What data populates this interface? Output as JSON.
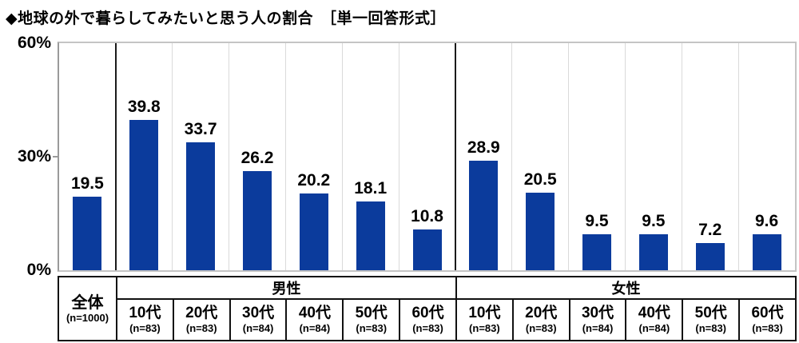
{
  "title": "◆地球の外で暮らしてみたいと思う人の割合　［単一回答形式］",
  "chart_data": {
    "type": "bar",
    "title": "◆地球の外で暮らしてみたいと思う人の割合　［単一回答形式］",
    "ylim": [
      0,
      60
    ],
    "yticks": [
      {
        "value": 0,
        "label": "0%"
      },
      {
        "value": 30,
        "label": "30%"
      },
      {
        "value": 60,
        "label": "60%"
      }
    ],
    "bar_color": "#0b3b9c",
    "grid": "vertical-column-dividers",
    "legend": "none",
    "columns": [
      {
        "group": "全体",
        "age": "全体",
        "n": "(n=1000)",
        "value": 19.5
      },
      {
        "group": "男性",
        "age": "10代",
        "n": "(n=83)",
        "value": 39.8
      },
      {
        "group": "男性",
        "age": "20代",
        "n": "(n=83)",
        "value": 33.7
      },
      {
        "group": "男性",
        "age": "30代",
        "n": "(n=84)",
        "value": 26.2
      },
      {
        "group": "男性",
        "age": "40代",
        "n": "(n=84)",
        "value": 20.2
      },
      {
        "group": "男性",
        "age": "50代",
        "n": "(n=83)",
        "value": 18.1
      },
      {
        "group": "男性",
        "age": "60代",
        "n": "(n=83)",
        "value": 10.8
      },
      {
        "group": "女性",
        "age": "10代",
        "n": "(n=83)",
        "value": 28.9
      },
      {
        "group": "女性",
        "age": "20代",
        "n": "(n=83)",
        "value": 20.5
      },
      {
        "group": "女性",
        "age": "30代",
        "n": "(n=84)",
        "value": 9.5
      },
      {
        "group": "女性",
        "age": "40代",
        "n": "(n=84)",
        "value": 9.5
      },
      {
        "group": "女性",
        "age": "50代",
        "n": "(n=83)",
        "value": 7.2
      },
      {
        "group": "女性",
        "age": "60代",
        "n": "(n=83)",
        "value": 9.6
      }
    ],
    "group_headers": [
      {
        "label": "男性",
        "cols": 6
      },
      {
        "label": "女性",
        "cols": 6
      }
    ],
    "separators_after_column": [
      0,
      6
    ]
  }
}
